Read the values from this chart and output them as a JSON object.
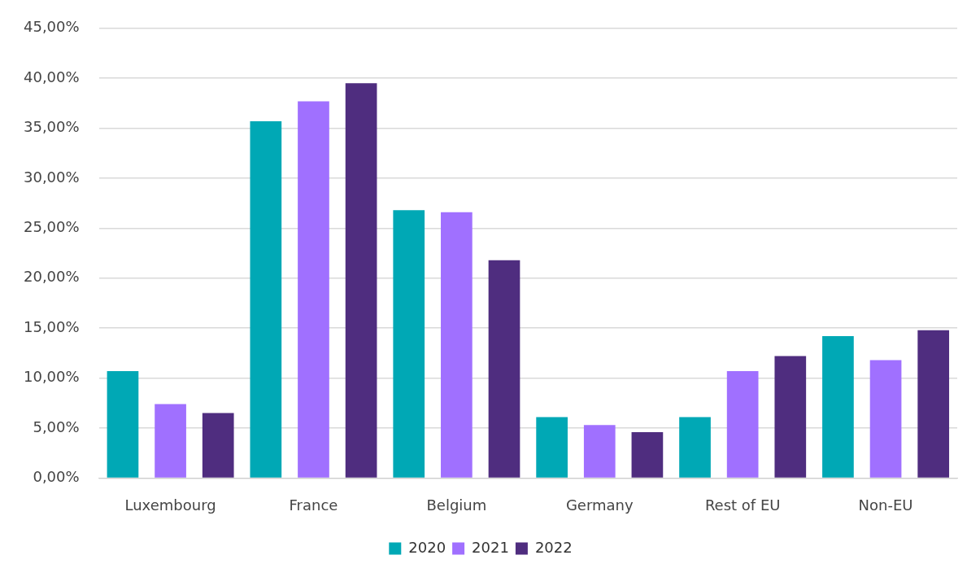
{
  "chart_data": {
    "type": "bar",
    "categories": [
      "Luxembourg",
      "France",
      "Belgium",
      "Germany",
      "Rest of EU",
      "Non-EU"
    ],
    "series": [
      {
        "name": "2020",
        "color": "#00a8b5",
        "values": [
          10.7,
          35.7,
          26.8,
          6.1,
          6.1,
          14.2
        ]
      },
      {
        "name": "2021",
        "color": "#a070ff",
        "values": [
          7.4,
          37.7,
          26.6,
          5.3,
          10.7,
          11.8
        ]
      },
      {
        "name": "2022",
        "color": "#4f2d7f",
        "values": [
          6.5,
          39.5,
          21.8,
          4.6,
          12.2,
          14.8
        ]
      }
    ],
    "ylim": [
      0,
      45
    ],
    "yticks": [
      {
        "value": 0,
        "label": "0,00%"
      },
      {
        "value": 5,
        "label": "5,00%"
      },
      {
        "value": 10,
        "label": "10,00%"
      },
      {
        "value": 15,
        "label": "15,00%"
      },
      {
        "value": 20,
        "label": "20,00%"
      },
      {
        "value": 25,
        "label": "25,00%"
      },
      {
        "value": 30,
        "label": "30,00%"
      },
      {
        "value": 35,
        "label": "35,00%"
      },
      {
        "value": 40,
        "label": "40,00%"
      },
      {
        "value": 45,
        "label": "45,00%"
      }
    ],
    "grid": "y",
    "legend": "bottom"
  }
}
